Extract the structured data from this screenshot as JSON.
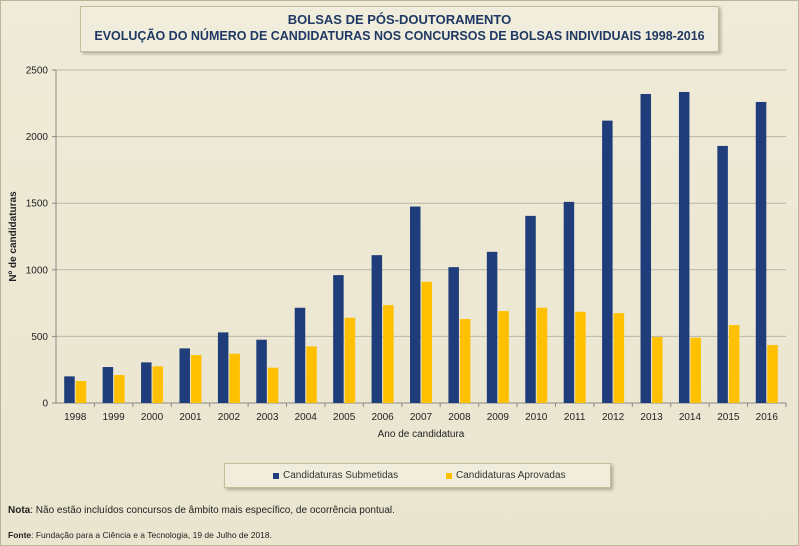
{
  "header": {
    "line1": "BOLSAS DE PÓS-DOUTORAMENTO",
    "line2": "EVOLUÇÃO DO NÚMERO DE CANDIDATURAS NOS CONCURSOS DE BOLSAS INDIVIDUAIS 1998-2016"
  },
  "footer": {
    "note_label": "Nota",
    "note_text": ": Não estão incluídos concursos de âmbito mais específico, de ocorrência pontual.",
    "source_label": "Fonte",
    "source_text": ": Fundação para a Ciência e a Tecnologia, 19 de Julho de 2018."
  },
  "chart_data": {
    "type": "bar",
    "title": "BOLSAS DE PÓS-DOUTORAMENTO",
    "subtitle": "EVOLUÇÃO DO NÚMERO DE CANDIDATURAS NOS CONCURSOS DE BOLSAS INDIVIDUAIS 1998-2016",
    "xlabel": "Ano de candidatura",
    "ylabel": "Nº de candidaturas",
    "ylim": [
      0,
      2500
    ],
    "yticks": [
      0,
      500,
      1000,
      1500,
      2000,
      2500
    ],
    "grid": true,
    "legend_position": "bottom",
    "categories": [
      "1998",
      "1999",
      "2000",
      "2001",
      "2002",
      "2003",
      "2004",
      "2005",
      "2006",
      "2007",
      "2008",
      "2009",
      "2010",
      "2011",
      "2012",
      "2013",
      "2014",
      "2015",
      "2016"
    ],
    "series": [
      {
        "name": "Candidaturas Submetidas",
        "color": "#1f3d7a",
        "values": [
          200,
          270,
          305,
          410,
          530,
          475,
          715,
          960,
          1110,
          1475,
          1020,
          1135,
          1405,
          1510,
          2120,
          2320,
          2335,
          1930,
          2260
        ]
      },
      {
        "name": "Candidaturas Aprovadas",
        "color": "#ffc000",
        "values": [
          165,
          210,
          275,
          360,
          370,
          265,
          425,
          640,
          735,
          910,
          630,
          690,
          715,
          685,
          675,
          495,
          490,
          585,
          435
        ]
      }
    ]
  }
}
